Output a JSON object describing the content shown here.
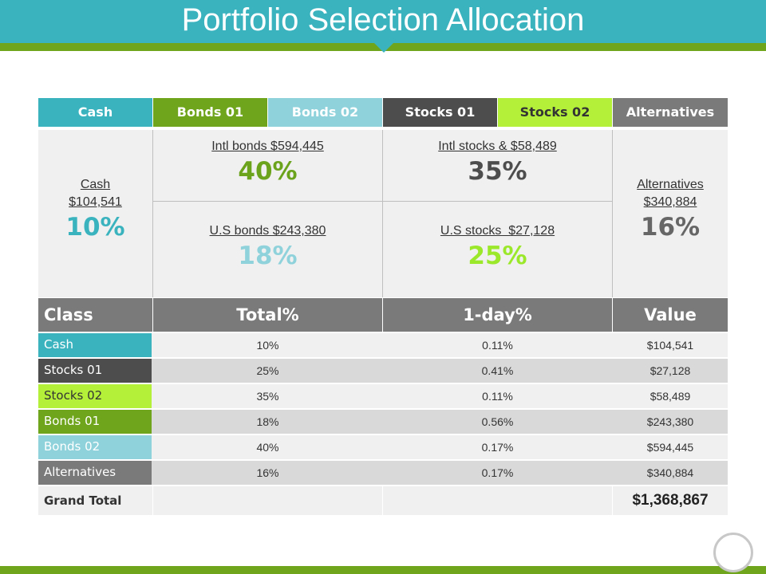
{
  "title": "Portfolio Selection Allocation",
  "colors": {
    "teal": "#3bb3bf",
    "green": "#6fa51c",
    "light_teal": "#8fd2db",
    "dark": "#4d4d4d",
    "lime": "#b4f03a",
    "gray": "#7a7a7a",
    "bonds01_pct": "#6ba31c",
    "stocks02_pct": "#9be82a"
  },
  "tabs": [
    "Cash",
    "Bonds 01",
    "Bonds 02",
    "Stocks 01",
    "Stocks 02",
    "Alternatives"
  ],
  "summary": {
    "cash": {
      "label": "Cash",
      "amount": "$104,541",
      "pct": "10%"
    },
    "intl_bonds": {
      "label": "Intl bonds $594,445",
      "pct": "40%"
    },
    "intl_stocks": {
      "label": "Intl stocks & $58,489",
      "pct": "35%"
    },
    "us_bonds": {
      "label": "U.S bonds $243,380",
      "pct": "18%"
    },
    "us_stocks": {
      "label": "U.S stocks  $27,128",
      "pct": "25%"
    },
    "alternatives": {
      "label": "Alternatives",
      "amount": "$340,884",
      "pct": "16%"
    }
  },
  "table": {
    "headers": [
      "Class",
      "Total%",
      "1-day%",
      "Value"
    ],
    "rows": [
      {
        "class": "Cash",
        "total": "10%",
        "day": "0.11%",
        "value": "$104,541"
      },
      {
        "class": "Stocks 01",
        "total": "25%",
        "day": "0.41%",
        "value": "$27,128"
      },
      {
        "class": "Stocks 02",
        "total": "35%",
        "day": "0.11%",
        "value": "$58,489"
      },
      {
        "class": "Bonds 01",
        "total": "18%",
        "day": "0.56%",
        "value": "$243,380"
      },
      {
        "class": "Bonds 02",
        "total": "40%",
        "day": "0.17%",
        "value": "$594,445"
      },
      {
        "class": "Alternatives",
        "total": "16%",
        "day": "0.17%",
        "value": "$340,884"
      }
    ],
    "grand_total_label": "Grand Total",
    "grand_total_value": "$1,368,867"
  }
}
